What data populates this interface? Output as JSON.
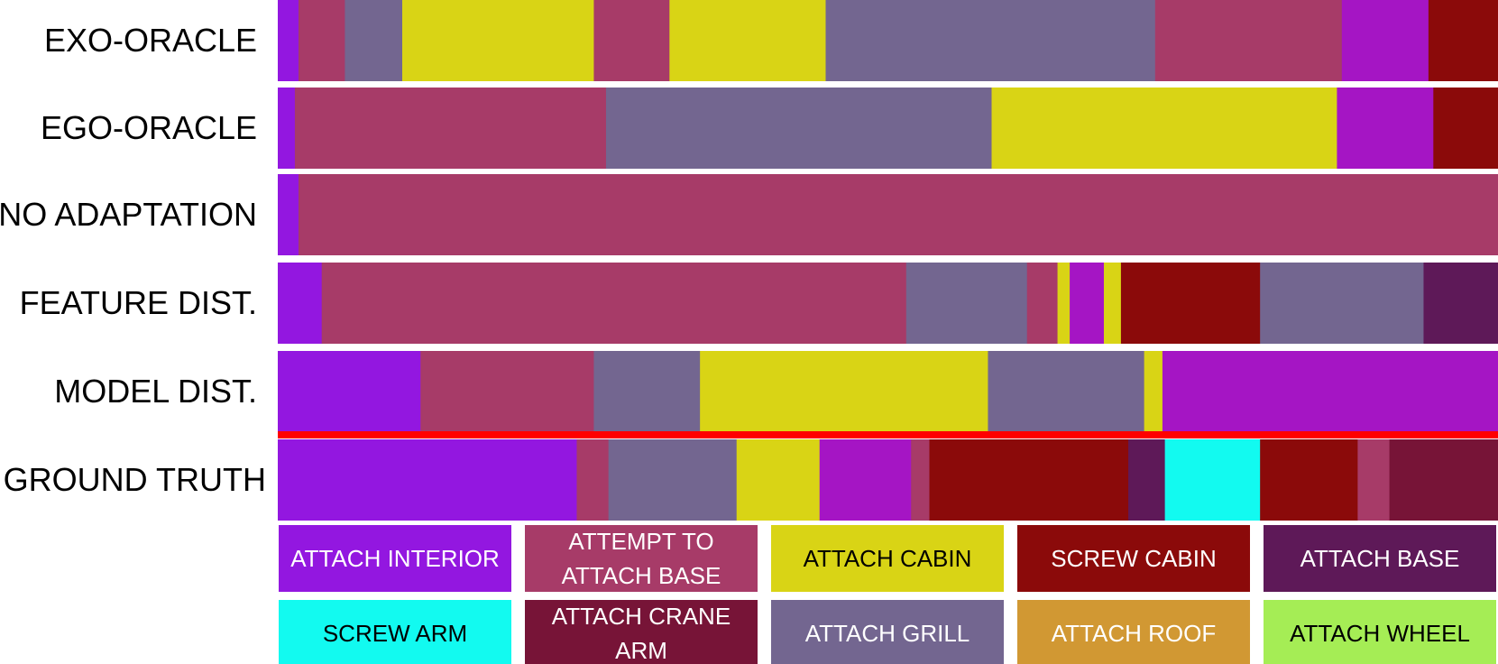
{
  "chart_data": {
    "type": "bar",
    "subtype": "segmented-timeline",
    "x_range": [
      0,
      100
    ],
    "separator_color": "#ff0000",
    "actions": [
      {
        "key": "attach_interior",
        "label_lines": [
          "ATTACH INTERIOR"
        ],
        "color": "#9317e0",
        "text_color": "#ffffff"
      },
      {
        "key": "attempt_attach_base",
        "label_lines": [
          "ATTEMPT TO",
          "ATTACH BASE"
        ],
        "color": "#a73b68",
        "text_color": "#ffffff"
      },
      {
        "key": "attach_cabin",
        "label_lines": [
          "ATTACH CABIN"
        ],
        "color": "#d9d415",
        "text_color": "#000000"
      },
      {
        "key": "screw_cabin",
        "label_lines": [
          "SCREW CABIN"
        ],
        "color": "#8b0a0a",
        "text_color": "#ffffff"
      },
      {
        "key": "attach_base",
        "label_lines": [
          "ATTACH BASE"
        ],
        "color": "#5e1958",
        "text_color": "#ffffff"
      },
      {
        "key": "screw_arm",
        "label_lines": [
          "SCREW ARM"
        ],
        "color": "#12faf0",
        "text_color": "#000000"
      },
      {
        "key": "attach_crane_arm",
        "label_lines": [
          "ATTACH CRANE",
          "ARM"
        ],
        "color": "#771437",
        "text_color": "#ffffff"
      },
      {
        "key": "attach_grill",
        "label_lines": [
          "ATTACH GRILL"
        ],
        "color": "#736690",
        "text_color": "#ffffff"
      },
      {
        "key": "attach_roof",
        "label_lines": [
          "ATTACH ROOF"
        ],
        "color": "#d19833",
        "text_color": "#ffffff"
      },
      {
        "key": "attach_wheel",
        "label_lines": [
          "ATTACH WHEEL"
        ],
        "color": "#a5ed55",
        "text_color": "#000000"
      },
      {
        "key": "attach_cabin_alt",
        "label_lines": [],
        "color": "#a515c4",
        "text_color": "#ffffff"
      }
    ],
    "rows": [
      {
        "label": "EXO-ORACLE",
        "segments": [
          {
            "action": "attach_interior",
            "start": 0,
            "end": 1.7
          },
          {
            "action": "attempt_attach_base",
            "start": 1.7,
            "end": 5.5
          },
          {
            "action": "attach_grill",
            "start": 5.5,
            "end": 10.2
          },
          {
            "action": "attach_cabin",
            "start": 10.2,
            "end": 25.9
          },
          {
            "action": "attempt_attach_base",
            "start": 25.9,
            "end": 32.1
          },
          {
            "action": "attach_cabin",
            "start": 32.1,
            "end": 44.9
          },
          {
            "action": "attach_grill",
            "start": 44.9,
            "end": 71.9
          },
          {
            "action": "attempt_attach_base",
            "start": 71.9,
            "end": 87.2
          },
          {
            "action": "attach_cabin_alt",
            "start": 87.2,
            "end": 94.3
          },
          {
            "action": "screw_cabin",
            "start": 94.3,
            "end": 100
          }
        ]
      },
      {
        "label": "EGO-ORACLE",
        "segments": [
          {
            "action": "attach_interior",
            "start": 0,
            "end": 1.4
          },
          {
            "action": "attempt_attach_base",
            "start": 1.4,
            "end": 26.9
          },
          {
            "action": "attach_grill",
            "start": 26.9,
            "end": 58.5
          },
          {
            "action": "attach_cabin",
            "start": 58.5,
            "end": 86.8
          },
          {
            "action": "attach_cabin_alt",
            "start": 86.8,
            "end": 94.7
          },
          {
            "action": "screw_cabin",
            "start": 94.7,
            "end": 100
          }
        ]
      },
      {
        "label": "NO ADAPTATION",
        "segments": [
          {
            "action": "attach_interior",
            "start": 0,
            "end": 1.7
          },
          {
            "action": "attempt_attach_base",
            "start": 1.7,
            "end": 100
          }
        ]
      },
      {
        "label": "FEATURE DIST.",
        "segments": [
          {
            "action": "attach_interior",
            "start": 0,
            "end": 3.6
          },
          {
            "action": "attempt_attach_base",
            "start": 3.6,
            "end": 51.5
          },
          {
            "action": "attach_grill",
            "start": 51.5,
            "end": 61.4
          },
          {
            "action": "attempt_attach_base",
            "start": 61.4,
            "end": 63.9
          },
          {
            "action": "attach_cabin",
            "start": 63.9,
            "end": 64.9
          },
          {
            "action": "attach_cabin_alt",
            "start": 64.9,
            "end": 67.7
          },
          {
            "action": "attach_cabin",
            "start": 67.7,
            "end": 69.1
          },
          {
            "action": "screw_cabin",
            "start": 69.1,
            "end": 80.5
          },
          {
            "action": "attach_grill",
            "start": 80.5,
            "end": 93.9
          },
          {
            "action": "attach_base",
            "start": 93.9,
            "end": 100
          }
        ]
      },
      {
        "label": "MODEL DIST.",
        "segments": [
          {
            "action": "attach_interior",
            "start": 0,
            "end": 11.7
          },
          {
            "action": "attempt_attach_base",
            "start": 11.7,
            "end": 25.9
          },
          {
            "action": "attach_grill",
            "start": 25.9,
            "end": 34.6
          },
          {
            "action": "attach_cabin",
            "start": 34.6,
            "end": 58.2
          },
          {
            "action": "attach_grill",
            "start": 58.2,
            "end": 71.0
          },
          {
            "action": "attach_cabin",
            "start": 71.0,
            "end": 72.5
          },
          {
            "action": "attach_cabin_alt",
            "start": 72.5,
            "end": 100
          }
        ]
      },
      {
        "label": "GROUND TRUTH",
        "segments": [
          {
            "action": "attach_interior",
            "start": 0,
            "end": 24.5
          },
          {
            "action": "attempt_attach_base",
            "start": 24.5,
            "end": 27.1
          },
          {
            "action": "attach_grill",
            "start": 27.1,
            "end": 37.6
          },
          {
            "action": "attach_cabin",
            "start": 37.6,
            "end": 44.4
          },
          {
            "action": "attach_cabin_alt",
            "start": 44.4,
            "end": 51.9
          },
          {
            "action": "attempt_attach_base",
            "start": 51.9,
            "end": 53.4
          },
          {
            "action": "screw_cabin",
            "start": 53.4,
            "end": 69.7
          },
          {
            "action": "attach_base",
            "start": 69.7,
            "end": 72.7
          },
          {
            "action": "screw_arm",
            "start": 72.7,
            "end": 80.5
          },
          {
            "action": "screw_cabin",
            "start": 80.5,
            "end": 88.5
          },
          {
            "action": "attempt_attach_base",
            "start": 88.5,
            "end": 91.1
          },
          {
            "action": "attach_crane_arm",
            "start": 91.1,
            "end": 100
          }
        ]
      }
    ],
    "legend": [
      "attach_interior",
      "attempt_attach_base",
      "attach_cabin",
      "screw_cabin",
      "attach_base",
      "screw_arm",
      "attach_crane_arm",
      "attach_grill",
      "attach_roof",
      "attach_wheel"
    ]
  }
}
